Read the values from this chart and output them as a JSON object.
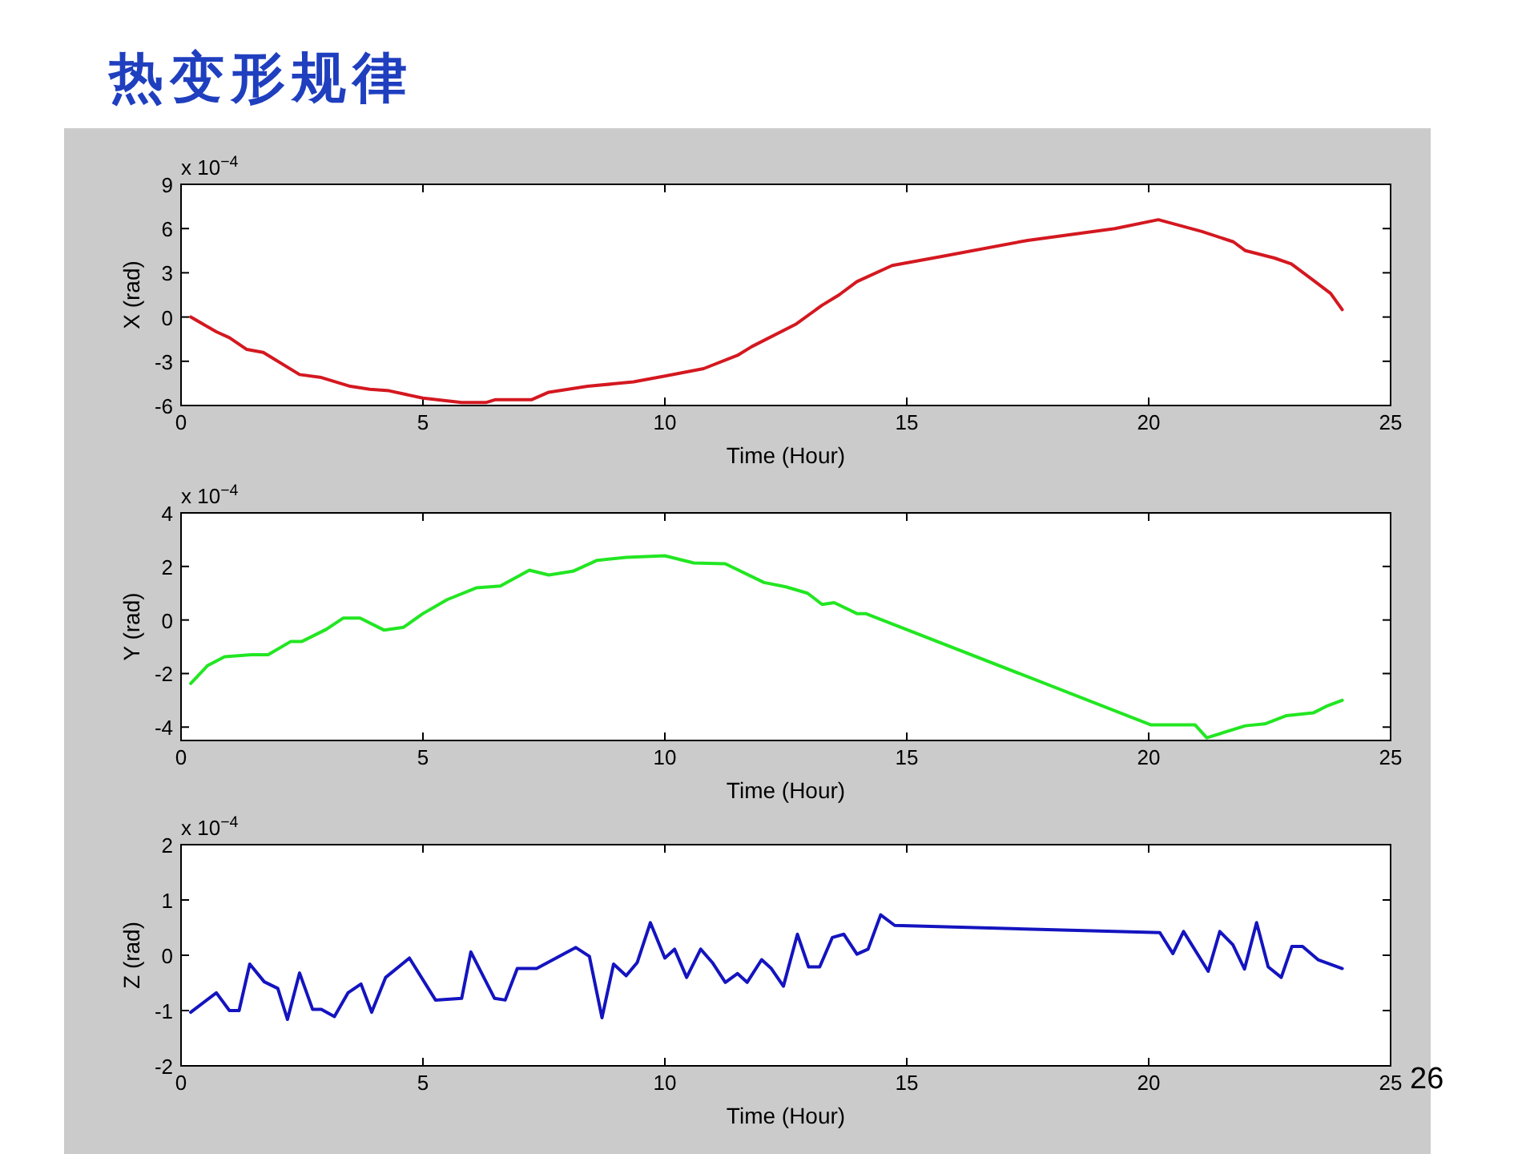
{
  "chart_data": [
    {
      "type": "line",
      "title": "热变形规律",
      "xlabel": "Time (Hour)",
      "ylabel": "X (rad)",
      "color": "#d41820",
      "annotations": [
        "x 10$^{−4}$"
      ],
      "xlim": [
        0,
        25
      ],
      "xticks": [
        0,
        5,
        10,
        15,
        20,
        25
      ],
      "ylim": [
        -6,
        9
      ],
      "yticks": [
        -6,
        -3,
        0,
        3,
        6,
        9
      ],
      "x": [
        0.2,
        0.73,
        1.0,
        1.36,
        1.7,
        2.45,
        2.9,
        3.5,
        3.9,
        4.3,
        5.0,
        5.8,
        6.3,
        6.5,
        7.25,
        7.6,
        8.4,
        9.35,
        10,
        10.8,
        11.5,
        11.8,
        12.7,
        13.25,
        13.6,
        13.97,
        14.7,
        15.7,
        17.5,
        19.3,
        20.2,
        21.1,
        21.75,
        22.0,
        22.6,
        22.95,
        23.4,
        23.76,
        24.0
      ],
      "values": [
        0,
        -1.0,
        -1.4,
        -2.2,
        -2.4,
        -3.9,
        -4.1,
        -4.7,
        -4.9,
        -5.0,
        -5.5,
        -5.8,
        -5.8,
        -5.6,
        -5.6,
        -5.1,
        -4.7,
        -4.4,
        -4.0,
        -3.5,
        -2.6,
        -2.0,
        -0.5,
        0.8,
        1.5,
        2.4,
        3.5,
        4.1,
        5.2,
        6.0,
        6.6,
        5.8,
        5.1,
        4.5,
        4.0,
        3.6,
        2.5,
        1.6,
        0.5
      ]
    },
    {
      "type": "line",
      "xlabel": "Time (Hour)",
      "ylabel": "Y (rad)",
      "color": "#22e622",
      "annotations": [
        "x 10$^{−4}$"
      ],
      "xlim": [
        0,
        25
      ],
      "xticks": [
        0,
        5,
        10,
        15,
        20,
        25
      ],
      "ylim": [
        -4.5,
        4
      ],
      "yticks": [
        -4,
        -2,
        0,
        2,
        4
      ],
      "x": [
        0.2,
        0.55,
        0.9,
        1.45,
        1.8,
        2.27,
        2.5,
        3.0,
        3.35,
        3.7,
        4.2,
        4.6,
        5.0,
        5.5,
        6.1,
        6.6,
        7.2,
        7.6,
        8.1,
        8.6,
        9.2,
        10,
        10.6,
        11.25,
        12.05,
        12.5,
        12.95,
        13.25,
        13.5,
        13.97,
        14.15,
        20.05,
        20.96,
        21.2,
        22.0,
        22.4,
        22.85,
        23.4,
        23.7,
        24.0
      ],
      "values": [
        -2.37,
        -1.7,
        -1.37,
        -1.3,
        -1.3,
        -0.8,
        -0.8,
        -0.35,
        0.07,
        0.07,
        -0.38,
        -0.27,
        0.24,
        0.76,
        1.2,
        1.27,
        1.86,
        1.68,
        1.82,
        2.23,
        2.34,
        2.4,
        2.13,
        2.1,
        1.4,
        1.24,
        1.0,
        0.58,
        0.65,
        0.24,
        0.24,
        -3.92,
        -3.92,
        -4.4,
        -3.95,
        -3.88,
        -3.57,
        -3.47,
        -3.2,
        -3.0
      ]
    },
    {
      "type": "line",
      "xlabel": "Time (Hour)",
      "ylabel": "Z (rad)",
      "color": "#1414c0",
      "annotations": [
        "x 10$^{−4}$",
        "26"
      ],
      "xlim": [
        0,
        25
      ],
      "xticks": [
        0,
        5,
        10,
        15,
        20,
        25
      ],
      "ylim": [
        -2,
        2
      ],
      "yticks": [
        -2,
        -1,
        0,
        1,
        2
      ],
      "x": [
        0.2,
        0.73,
        1.0,
        1.2,
        1.42,
        1.72,
        2.0,
        2.2,
        2.45,
        2.72,
        2.9,
        3.17,
        3.45,
        3.72,
        3.94,
        4.23,
        4.72,
        5.26,
        5.8,
        5.99,
        6.48,
        6.7,
        6.95,
        7.35,
        8.16,
        8.44,
        8.7,
        8.94,
        9.2,
        9.43,
        9.7,
        10.0,
        10.2,
        10.45,
        10.74,
        10.98,
        11.25,
        11.5,
        11.7,
        12.0,
        12.2,
        12.45,
        12.74,
        12.97,
        13.2,
        13.46,
        13.7,
        13.97,
        14.2,
        14.46,
        14.75,
        20.23,
        20.5,
        20.72,
        21.23,
        21.47,
        21.74,
        21.98,
        22.23,
        22.47,
        22.74,
        22.96,
        23.18,
        23.5,
        24.0
      ],
      "values": [
        -1.03,
        -0.68,
        -1.0,
        -1.0,
        -0.16,
        -0.48,
        -0.6,
        -1.16,
        -0.32,
        -0.98,
        -0.98,
        -1.11,
        -0.68,
        -0.52,
        -1.03,
        -0.4,
        -0.05,
        -0.81,
        -0.78,
        0.06,
        -0.78,
        -0.81,
        -0.24,
        -0.24,
        0.14,
        -0.02,
        -1.13,
        -0.16,
        -0.37,
        -0.13,
        0.59,
        -0.05,
        0.11,
        -0.4,
        0.11,
        -0.13,
        -0.49,
        -0.33,
        -0.49,
        -0.08,
        -0.24,
        -0.56,
        0.38,
        -0.21,
        -0.21,
        0.32,
        0.38,
        0.02,
        0.11,
        0.73,
        0.54,
        0.41,
        0.03,
        0.43,
        -0.29,
        0.43,
        0.19,
        -0.25,
        0.59,
        -0.21,
        -0.4,
        0.16,
        0.16,
        -0.08,
        -0.24
      ]
    }
  ]
}
